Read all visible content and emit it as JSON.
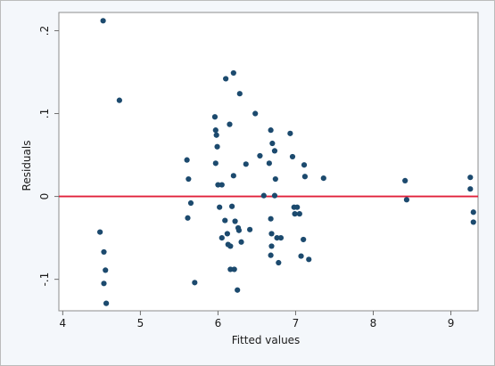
{
  "chart_data": {
    "type": "scatter",
    "title": "",
    "xlabel": "Fitted values",
    "ylabel": "Residuals",
    "xlim": [
      3.95,
      9.35
    ],
    "ylim": [
      -0.138,
      0.222
    ],
    "xticks": [
      4,
      5,
      6,
      7,
      8,
      9
    ],
    "yticks": [
      -0.1,
      0,
      0.1,
      0.2
    ],
    "xtick_labels": [
      "4",
      "5",
      "6",
      "7",
      "8",
      "9"
    ],
    "ytick_labels": [
      "-.1",
      "0",
      ".1",
      ".2"
    ],
    "grid": false,
    "reference_line": {
      "y": 0,
      "color": "#e0203a"
    },
    "marker_color": "#1c4a6e",
    "points": [
      [
        4.52,
        0.212
      ],
      [
        4.48,
        -0.043
      ],
      [
        4.53,
        -0.067
      ],
      [
        4.55,
        -0.089
      ],
      [
        4.53,
        -0.105
      ],
      [
        4.56,
        -0.129
      ],
      [
        4.73,
        0.116
      ],
      [
        5.6,
        0.044
      ],
      [
        5.62,
        0.021
      ],
      [
        5.61,
        -0.026
      ],
      [
        5.65,
        -0.008
      ],
      [
        5.7,
        -0.104
      ],
      [
        5.96,
        0.096
      ],
      [
        5.97,
        0.08
      ],
      [
        5.98,
        0.074
      ],
      [
        5.99,
        0.06
      ],
      [
        5.97,
        0.04
      ],
      [
        6.0,
        0.014
      ],
      [
        6.05,
        0.014
      ],
      [
        6.02,
        -0.013
      ],
      [
        6.05,
        -0.05
      ],
      [
        6.09,
        -0.029
      ],
      [
        6.1,
        0.142
      ],
      [
        6.15,
        0.087
      ],
      [
        6.12,
        -0.045
      ],
      [
        6.13,
        -0.058
      ],
      [
        6.16,
        -0.06
      ],
      [
        6.16,
        -0.088
      ],
      [
        6.21,
        -0.088
      ],
      [
        6.2,
        0.149
      ],
      [
        6.25,
        -0.113
      ],
      [
        6.28,
        0.124
      ],
      [
        6.2,
        0.025
      ],
      [
        6.18,
        -0.012
      ],
      [
        6.22,
        -0.03
      ],
      [
        6.26,
        -0.038
      ],
      [
        6.27,
        -0.041
      ],
      [
        6.3,
        -0.055
      ],
      [
        6.36,
        0.039
      ],
      [
        6.41,
        -0.04
      ],
      [
        6.48,
        0.1
      ],
      [
        6.54,
        0.049
      ],
      [
        6.59,
        0.001
      ],
      [
        6.68,
        0.08
      ],
      [
        6.7,
        0.064
      ],
      [
        6.73,
        0.055
      ],
      [
        6.66,
        0.04
      ],
      [
        6.74,
        0.021
      ],
      [
        6.73,
        0.001
      ],
      [
        6.68,
        -0.027
      ],
      [
        6.69,
        -0.045
      ],
      [
        6.69,
        -0.06
      ],
      [
        6.68,
        -0.071
      ],
      [
        6.76,
        -0.05
      ],
      [
        6.81,
        -0.05
      ],
      [
        6.78,
        -0.08
      ],
      [
        6.93,
        0.076
      ],
      [
        6.96,
        0.048
      ],
      [
        6.98,
        -0.013
      ],
      [
        7.02,
        -0.013
      ],
      [
        6.99,
        -0.021
      ],
      [
        7.05,
        -0.021
      ],
      [
        7.07,
        -0.072
      ],
      [
        7.11,
        0.038
      ],
      [
        7.12,
        0.024
      ],
      [
        7.1,
        -0.052
      ],
      [
        7.17,
        -0.076
      ],
      [
        7.36,
        0.022
      ],
      [
        8.41,
        0.019
      ],
      [
        8.43,
        -0.004
      ],
      [
        9.25,
        0.023
      ],
      [
        9.25,
        0.009
      ],
      [
        9.29,
        -0.019
      ],
      [
        9.29,
        -0.031
      ]
    ]
  }
}
